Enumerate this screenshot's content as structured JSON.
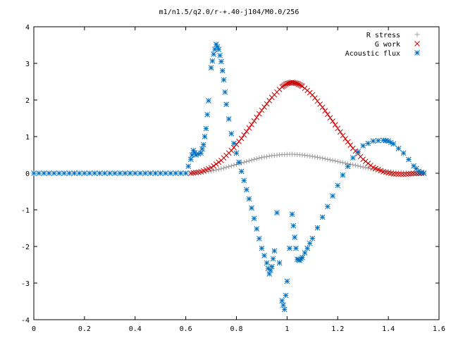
{
  "chart_data": {
    "type": "scatter",
    "title": "m1/n1.5/q2.0/r-+.40-j104/M0.0/256",
    "xlabel": "",
    "ylabel": "",
    "xlim": [
      0,
      1.6
    ],
    "ylim": [
      -4,
      4
    ],
    "x_ticks": [
      "0",
      "0.2",
      "0.4",
      "0.6",
      "0.8",
      "1",
      "1.2",
      "1.4",
      "1.6"
    ],
    "y_ticks": [
      "4",
      "3",
      "2",
      "1",
      "0",
      "-1",
      "-2",
      "-3",
      "-4"
    ],
    "grid": false,
    "legend": "top-right",
    "series": [
      {
        "name": "R stress",
        "marker": "plus",
        "color": "#a0a0a0",
        "x": [
          0.62,
          0.66,
          0.7,
          0.74,
          0.78,
          0.82,
          0.86,
          0.9,
          0.94,
          0.98,
          1.02,
          1.06,
          1.1,
          1.14,
          1.18,
          1.22,
          1.26,
          1.3,
          1.34,
          1.38,
          1.42,
          1.46,
          1.5,
          1.54
        ],
        "y": [
          0.0,
          0.02,
          0.06,
          0.12,
          0.2,
          0.28,
          0.36,
          0.43,
          0.48,
          0.51,
          0.52,
          0.5,
          0.46,
          0.41,
          0.35,
          0.29,
          0.23,
          0.17,
          0.11,
          0.06,
          0.03,
          0.01,
          0.0,
          0.0
        ]
      },
      {
        "name": "G work",
        "marker": "x",
        "color": "#cc0000",
        "x": [
          0.62,
          0.66,
          0.7,
          0.74,
          0.78,
          0.82,
          0.86,
          0.9,
          0.94,
          0.98,
          1.0,
          1.02,
          1.04,
          1.06,
          1.1,
          1.14,
          1.18,
          1.22,
          1.26,
          1.3,
          1.34,
          1.38,
          1.42,
          1.46,
          1.5,
          1.54
        ],
        "y": [
          0.0,
          0.04,
          0.15,
          0.35,
          0.62,
          0.95,
          1.33,
          1.72,
          2.07,
          2.36,
          2.45,
          2.48,
          2.45,
          2.38,
          2.14,
          1.8,
          1.42,
          1.03,
          0.68,
          0.38,
          0.16,
          0.04,
          -0.02,
          -0.03,
          -0.01,
          0.0
        ]
      },
      {
        "name": "Acoustic flux",
        "marker": "star",
        "color": "#0070c0",
        "x": [
          0.0,
          0.04,
          0.08,
          0.12,
          0.16,
          0.2,
          0.24,
          0.28,
          0.32,
          0.36,
          0.4,
          0.44,
          0.48,
          0.52,
          0.56,
          0.6,
          0.62,
          0.63,
          0.64,
          0.66,
          0.67,
          0.68,
          0.69,
          0.7,
          0.71,
          0.72,
          0.73,
          0.74,
          0.75,
          0.76,
          0.78,
          0.8,
          0.82,
          0.84,
          0.86,
          0.88,
          0.9,
          0.92,
          0.93,
          0.94,
          0.95,
          0.96,
          0.97,
          0.98,
          0.99,
          1.0,
          1.01,
          1.02,
          1.03,
          1.04,
          1.05,
          1.06,
          1.08,
          1.1,
          1.14,
          1.18,
          1.22,
          1.26,
          1.3,
          1.34,
          1.38,
          1.4,
          1.42,
          1.46,
          1.5,
          1.52,
          1.54
        ],
        "y": [
          0,
          0,
          0,
          0,
          0,
          0,
          0,
          0,
          0,
          0,
          0,
          0,
          0,
          0,
          0,
          0,
          0.38,
          0.62,
          0.5,
          0.55,
          0.78,
          1.22,
          1.98,
          2.88,
          3.25,
          3.52,
          3.38,
          3.05,
          2.55,
          1.88,
          1.08,
          0.55,
          0.05,
          -0.45,
          -0.95,
          -1.52,
          -2.05,
          -2.45,
          -2.75,
          -2.55,
          -2.12,
          -1.08,
          -2.45,
          -3.48,
          -3.72,
          -2.95,
          -2.05,
          -1.12,
          -1.75,
          -2.35,
          -2.38,
          -2.3,
          -2.05,
          -1.78,
          -1.2,
          -0.62,
          -0.05,
          0.42,
          0.75,
          0.88,
          0.9,
          0.88,
          0.8,
          0.55,
          0.2,
          0.05,
          0.0
        ]
      }
    ]
  }
}
